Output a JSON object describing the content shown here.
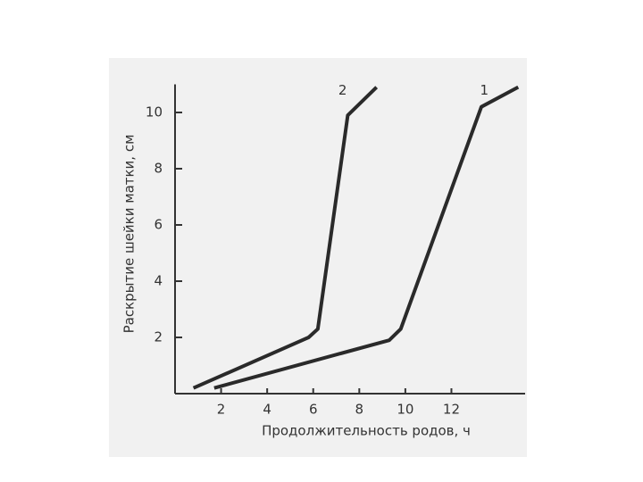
{
  "chart_data": {
    "type": "line",
    "x_label": "Продолжительность родов, ч",
    "y_label": "Раскрытие шейки матки, см",
    "series": [
      {
        "name": "1",
        "color": "#2a2a2a",
        "x": [
          1.7,
          9.3,
          9.8,
          13.3,
          14.9
        ],
        "values": [
          0.2,
          1.9,
          2.3,
          10.2,
          10.9
        ]
      },
      {
        "name": "2",
        "color": "#2a2a2a",
        "x": [
          0.8,
          5.8,
          6.2,
          7.5,
          8.75
        ],
        "values": [
          0.2,
          2,
          2.3,
          9.9,
          10.9
        ]
      }
    ],
    "xlim": [
      0,
      15.2
    ],
    "ylim": [
      0,
      11
    ],
    "xticks": [
      2,
      4,
      6,
      8,
      10,
      12
    ],
    "yticks": [
      2,
      4,
      6,
      8,
      10
    ]
  }
}
